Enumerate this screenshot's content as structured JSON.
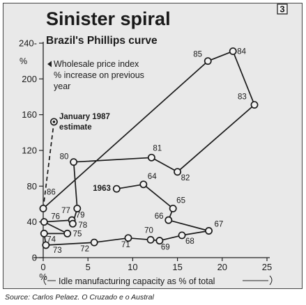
{
  "badge": "3",
  "chart_data": {
    "type": "scatter",
    "title": "Sinister spiral",
    "subtitle": "Brazil's Phillips curve",
    "ylabel": "%",
    "ylabel_note": [
      "Wholesale price index",
      "% increase on previous",
      "year"
    ],
    "xlabel": "Idle manufacturing capacity as % of total",
    "xlim": [
      0,
      25
    ],
    "ylim": [
      0,
      240
    ],
    "x_ticks": [
      0,
      5,
      10,
      15,
      20,
      25
    ],
    "y_ticks": [
      0,
      40,
      80,
      120,
      160,
      200,
      240
    ],
    "x_tick_labels": [
      "0",
      "5",
      "10",
      "15",
      "20",
      "25"
    ],
    "y_tick_labels": [
      "0",
      "40",
      "80",
      "120",
      "160",
      "200",
      "240-"
    ],
    "x_zero_symbol": "%",
    "grid": false,
    "points": [
      {
        "label": "1963",
        "x": 8.2,
        "y": 77
      },
      {
        "label": "64",
        "x": 11.2,
        "y": 82
      },
      {
        "label": "65",
        "x": 14.5,
        "y": 55
      },
      {
        "label": "66",
        "x": 14.0,
        "y": 42
      },
      {
        "label": "67",
        "x": 18.5,
        "y": 30
      },
      {
        "label": "68",
        "x": 15.5,
        "y": 25
      },
      {
        "label": "69",
        "x": 13.0,
        "y": 19
      },
      {
        "label": "70",
        "x": 12.0,
        "y": 20
      },
      {
        "label": "71",
        "x": 9.5,
        "y": 22
      },
      {
        "label": "72",
        "x": 5.7,
        "y": 17
      },
      {
        "label": "73",
        "x": 0.3,
        "y": 14
      },
      {
        "label": "74",
        "x": 0.1,
        "y": 27
      },
      {
        "label": "75",
        "x": 2.7,
        "y": 27
      },
      {
        "label": "76",
        "x": 0.1,
        "y": 40
      },
      {
        "label": "77",
        "x": 3.2,
        "y": 42
      },
      {
        "label": "78",
        "x": 3.3,
        "y": 38
      },
      {
        "label": "79",
        "x": 3.8,
        "y": 55
      },
      {
        "label": "80",
        "x": 3.4,
        "y": 107
      },
      {
        "label": "81",
        "x": 12.1,
        "y": 112
      },
      {
        "label": "82",
        "x": 15.0,
        "y": 96
      },
      {
        "label": "83",
        "x": 23.6,
        "y": 171
      },
      {
        "label": "84",
        "x": 21.2,
        "y": 231
      },
      {
        "label": "85",
        "x": 18.4,
        "y": 220
      },
      {
        "label": "86",
        "x": 0.0,
        "y": 55
      }
    ],
    "estimate": {
      "label": [
        "January 1987",
        "estimate"
      ],
      "x": 0.0,
      "y": 55,
      "x_est": 1.2,
      "y_est": 152
    }
  },
  "source": "Source: Carlos Pelaez. O Cruzado e o Austral"
}
